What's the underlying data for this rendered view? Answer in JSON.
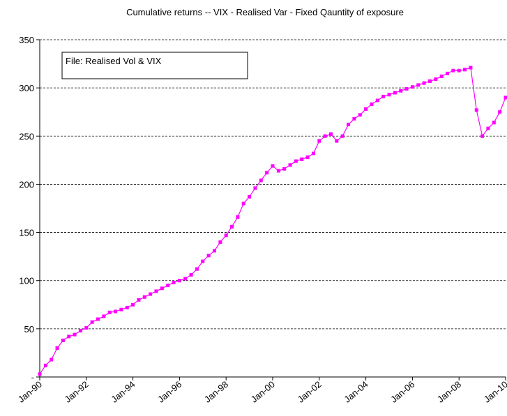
{
  "chart_data": {
    "type": "line",
    "title": "Cumulative returns -- VIX - Realised Var - Fixed Qauntity of exposure",
    "annotation": "File: Realised Vol & VIX",
    "x": [
      "1990-01",
      "1990-04",
      "1990-07",
      "1990-10",
      "1991-01",
      "1991-04",
      "1991-07",
      "1991-10",
      "1992-01",
      "1992-04",
      "1992-07",
      "1992-10",
      "1993-01",
      "1993-04",
      "1993-07",
      "1993-10",
      "1994-01",
      "1994-04",
      "1994-07",
      "1994-10",
      "1995-01",
      "1995-04",
      "1995-07",
      "1995-10",
      "1996-01",
      "1996-04",
      "1996-07",
      "1996-10",
      "1997-01",
      "1997-04",
      "1997-07",
      "1997-10",
      "1998-01",
      "1998-04",
      "1998-07",
      "1998-10",
      "1999-01",
      "1999-04",
      "1999-07",
      "1999-10",
      "2000-01",
      "2000-04",
      "2000-07",
      "2000-10",
      "2001-01",
      "2001-04",
      "2001-07",
      "2001-10",
      "2002-01",
      "2002-04",
      "2002-07",
      "2002-10",
      "2003-01",
      "2003-04",
      "2003-07",
      "2003-10",
      "2004-01",
      "2004-04",
      "2004-07",
      "2004-10",
      "2005-01",
      "2005-04",
      "2005-07",
      "2005-10",
      "2006-01",
      "2006-04",
      "2006-07",
      "2006-10",
      "2007-01",
      "2007-04",
      "2007-07",
      "2007-10",
      "2008-01",
      "2008-04",
      "2008-07",
      "2008-10",
      "2009-01",
      "2009-04",
      "2009-07",
      "2009-10",
      "2010-01"
    ],
    "series": [
      {
        "name": "Cumulative returns",
        "color": "#ff00ff",
        "values": [
          3,
          12,
          18,
          30,
          38,
          42,
          44,
          48,
          51,
          57,
          60,
          63,
          67,
          68,
          70,
          72,
          75,
          80,
          83,
          86,
          89,
          92,
          95,
          98,
          100,
          102,
          106,
          112,
          120,
          126,
          131,
          140,
          147,
          156,
          166,
          180,
          187,
          196,
          204,
          212,
          219,
          214,
          216,
          220,
          224,
          226,
          228,
          232,
          245,
          250,
          252,
          245,
          250,
          262,
          268,
          272,
          278,
          283,
          287,
          291,
          293,
          295,
          297,
          299,
          301,
          303,
          305,
          307,
          309,
          312,
          315,
          318,
          318,
          319,
          321,
          277,
          250,
          258,
          264,
          275,
          290
        ]
      }
    ],
    "xlim": [
      "1990-01",
      "2010-01"
    ],
    "xticks": [
      {
        "value": "1990-01",
        "label": "Jan-90"
      },
      {
        "value": "1992-01",
        "label": "Jan-92"
      },
      {
        "value": "1994-01",
        "label": "Jan-94"
      },
      {
        "value": "1996-01",
        "label": "Jan-96"
      },
      {
        "value": "1998-01",
        "label": "Jan-98"
      },
      {
        "value": "2000-01",
        "label": "Jan-00"
      },
      {
        "value": "2002-01",
        "label": "Jan-02"
      },
      {
        "value": "2004-01",
        "label": "Jan-04"
      },
      {
        "value": "2006-01",
        "label": "Jan-06"
      },
      {
        "value": "2008-01",
        "label": "Jan-08"
      },
      {
        "value": "2010-01",
        "label": "Jan-10"
      }
    ],
    "ylim": [
      0,
      350
    ],
    "yticks": [
      {
        "value": 0,
        "label": "-"
      },
      50,
      100,
      150,
      200,
      250,
      300,
      350
    ],
    "grid": true
  }
}
